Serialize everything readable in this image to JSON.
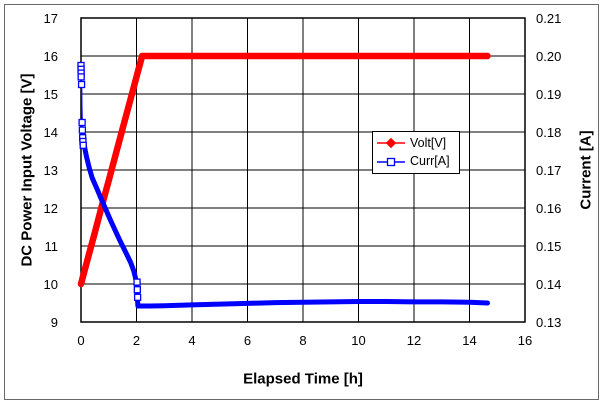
{
  "window": {
    "background": "#ffffff",
    "frame_border_color": "#6a6a6a"
  },
  "chart_data": {
    "type": "line",
    "title": "",
    "xlabel": "Elapsed Time [h]",
    "ylabel_left": "DC Power Input Voltage [V]",
    "ylabel_right": "Current [A]",
    "grid": true,
    "grid_color": "#000000",
    "plot_border_color": "#000000",
    "x_axis": {
      "min": 0,
      "max": 16,
      "ticks": [
        0,
        2,
        4,
        6,
        8,
        10,
        12,
        14,
        16
      ],
      "tick_labels": [
        "0",
        "2",
        "4",
        "6",
        "8",
        "10",
        "12",
        "14",
        "16"
      ]
    },
    "y_axis_left": {
      "min": 9,
      "max": 17,
      "ticks": [
        9,
        10,
        11,
        12,
        13,
        14,
        15,
        16,
        17
      ],
      "tick_labels": [
        "9",
        "10",
        "11",
        "12",
        "13",
        "14",
        "15",
        "16",
        "17"
      ]
    },
    "y_axis_right": {
      "min": 0.13,
      "max": 0.21,
      "ticks": [
        0.13,
        0.14,
        0.15,
        0.16,
        0.17,
        0.18,
        0.19,
        0.2,
        0.21
      ],
      "tick_labels": [
        "0.13",
        "0.14",
        "0.15",
        "0.16",
        "0.17",
        "0.18",
        "0.19",
        "0.20",
        "0.21"
      ]
    },
    "legend": {
      "position": "inside-right",
      "entries": [
        {
          "label": "Volt[V]",
          "color": "#ff0000",
          "marker": "filled-diamond"
        },
        {
          "label": "Curr[A]",
          "color": "#0000ff",
          "marker": "open-square"
        }
      ]
    },
    "series": [
      {
        "name": "Volt[V]",
        "axis": "left",
        "color": "#ff0000",
        "line_width": 6.5,
        "points": [
          [
            0,
            10.0
          ],
          [
            0.25,
            10.68
          ],
          [
            0.5,
            11.36
          ],
          [
            0.75,
            12.05
          ],
          [
            1.0,
            12.73
          ],
          [
            1.25,
            13.41
          ],
          [
            1.5,
            14.09
          ],
          [
            1.75,
            14.77
          ],
          [
            2.0,
            15.45
          ],
          [
            2.2,
            16.0
          ],
          [
            3,
            16.0
          ],
          [
            4,
            16.0
          ],
          [
            5,
            16.0
          ],
          [
            6,
            16.0
          ],
          [
            7,
            16.0
          ],
          [
            8,
            16.0
          ],
          [
            9,
            16.0
          ],
          [
            10,
            16.0
          ],
          [
            11,
            16.0
          ],
          [
            12,
            16.0
          ],
          [
            13,
            16.0
          ],
          [
            14,
            16.0
          ],
          [
            14.65,
            16.0
          ]
        ]
      },
      {
        "name": "Curr[A]",
        "axis": "right",
        "color": "#0000ff",
        "line_width": 5,
        "thin_points": [
          [
            0.004,
            0.1945
          ],
          [
            0.02,
            0.1925
          ],
          [
            0.03,
            0.1865
          ],
          [
            0.05,
            0.1805
          ]
        ],
        "cap_points": [
          [
            0,
            0.1975
          ],
          [
            0.005,
            0.1945
          ]
        ],
        "points": [
          [
            0.05,
            0.1805
          ],
          [
            0.07,
            0.1785
          ],
          [
            0.1,
            0.1772
          ],
          [
            0.15,
            0.1752
          ],
          [
            0.2,
            0.1735
          ],
          [
            0.3,
            0.1705
          ],
          [
            0.4,
            0.168
          ],
          [
            0.5,
            0.1663
          ],
          [
            0.6,
            0.1646
          ],
          [
            0.7,
            0.1629
          ],
          [
            0.8,
            0.1612
          ],
          [
            0.9,
            0.1595
          ],
          [
            1.0,
            0.1578
          ],
          [
            1.1,
            0.1562
          ],
          [
            1.2,
            0.1546
          ],
          [
            1.3,
            0.153
          ],
          [
            1.4,
            0.1515
          ],
          [
            1.5,
            0.15
          ],
          [
            1.6,
            0.1485
          ],
          [
            1.7,
            0.147
          ],
          [
            1.8,
            0.1455
          ],
          [
            1.9,
            0.1435
          ],
          [
            2.0,
            0.1405
          ],
          [
            2.05,
            0.1342
          ],
          [
            2.5,
            0.1342
          ],
          [
            3,
            0.1343
          ],
          [
            4,
            0.1345
          ],
          [
            5,
            0.1347
          ],
          [
            6,
            0.1349
          ],
          [
            7,
            0.1351
          ],
          [
            8,
            0.1352
          ],
          [
            9,
            0.1353
          ],
          [
            10,
            0.1354
          ],
          [
            11,
            0.1354
          ],
          [
            12,
            0.1353
          ],
          [
            13,
            0.1353
          ],
          [
            14,
            0.1352
          ],
          [
            14.65,
            0.135
          ]
        ],
        "marker_points": [
          [
            0,
            0.1975
          ],
          [
            0.002,
            0.1965
          ],
          [
            0.004,
            0.1955
          ],
          [
            0.006,
            0.1945
          ],
          [
            0.02,
            0.1925
          ],
          [
            0.04,
            0.1825
          ],
          [
            0.05,
            0.1805
          ],
          [
            0.06,
            0.1785
          ],
          [
            0.07,
            0.1775
          ],
          [
            0.08,
            0.1765
          ],
          [
            2.02,
            0.1405
          ],
          [
            2.03,
            0.1385
          ],
          [
            2.04,
            0.1365
          ]
        ]
      }
    ]
  }
}
